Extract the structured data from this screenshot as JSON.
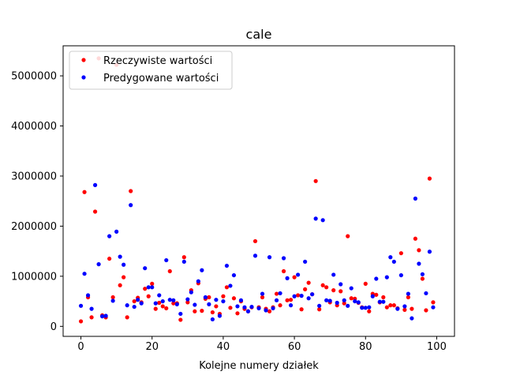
{
  "chart_data": {
    "type": "scatter",
    "title": "cale",
    "xlabel": "Kolejne numery działek",
    "ylabel": "",
    "xlim": [
      -5,
      105
    ],
    "ylim": [
      -200000,
      5600000
    ],
    "x_ticks": [
      0,
      20,
      40,
      60,
      80,
      100
    ],
    "x_tick_labels": [
      "0",
      "20",
      "40",
      "60",
      "80",
      "100"
    ],
    "y_ticks": [
      0,
      1000000,
      2000000,
      3000000,
      4000000,
      5000000
    ],
    "y_tick_labels": [
      "0",
      "1000000",
      "2000000",
      "3000000",
      "4000000",
      "5000000"
    ],
    "grid": false,
    "legend_position": "upper left",
    "series": [
      {
        "name": "Rzeczywiste wartości",
        "color": "#ff0000",
        "x": [
          0,
          1,
          2,
          3,
          4,
          5,
          6,
          7,
          8,
          9,
          10,
          11,
          12,
          13,
          14,
          15,
          16,
          17,
          18,
          19,
          20,
          21,
          22,
          23,
          24,
          25,
          26,
          27,
          28,
          29,
          30,
          31,
          32,
          33,
          34,
          35,
          36,
          37,
          38,
          39,
          40,
          41,
          42,
          43,
          44,
          45,
          46,
          47,
          48,
          49,
          50,
          51,
          52,
          53,
          54,
          55,
          56,
          57,
          58,
          59,
          60,
          61,
          62,
          63,
          64,
          65,
          66,
          67,
          68,
          69,
          70,
          71,
          72,
          73,
          74,
          75,
          76,
          77,
          78,
          79,
          80,
          81,
          82,
          83,
          84,
          85,
          86,
          87,
          88,
          89,
          90,
          91,
          92,
          93,
          94,
          95,
          96,
          97,
          98,
          99
        ],
        "y": [
          100000,
          2680000,
          580000,
          180000,
          2290000,
          5350000,
          220000,
          180000,
          1350000,
          580000,
          5220000,
          820000,
          980000,
          180000,
          2700000,
          500000,
          570000,
          480000,
          750000,
          600000,
          850000,
          350000,
          470000,
          400000,
          360000,
          1100000,
          460000,
          460000,
          130000,
          1380000,
          480000,
          720000,
          300000,
          860000,
          310000,
          550000,
          580000,
          280000,
          400000,
          250000,
          600000,
          780000,
          370000,
          560000,
          260000,
          500000,
          350000,
          300000,
          380000,
          1700000,
          380000,
          580000,
          350000,
          300000,
          380000,
          650000,
          420000,
          1100000,
          520000,
          530000,
          980000,
          620000,
          340000,
          740000,
          870000,
          640000,
          2900000,
          340000,
          820000,
          780000,
          480000,
          720000,
          420000,
          700000,
          460000,
          1800000,
          560000,
          550000,
          470000,
          380000,
          850000,
          300000,
          650000,
          630000,
          480000,
          580000,
          380000,
          420000,
          420000,
          360000,
          1460000,
          330000,
          580000,
          350000,
          1750000,
          1520000,
          950000,
          320000,
          2950000,
          480000
        ]
      },
      {
        "name": "Predygowane wartości",
        "color": "#0000ff",
        "x": [
          0,
          1,
          2,
          3,
          4,
          5,
          6,
          7,
          8,
          9,
          10,
          11,
          12,
          13,
          14,
          15,
          16,
          17,
          18,
          19,
          20,
          21,
          22,
          23,
          24,
          25,
          26,
          27,
          28,
          29,
          30,
          31,
          32,
          33,
          34,
          35,
          36,
          37,
          38,
          39,
          40,
          41,
          42,
          43,
          44,
          45,
          46,
          47,
          48,
          49,
          50,
          51,
          52,
          53,
          54,
          55,
          56,
          57,
          58,
          59,
          60,
          61,
          62,
          63,
          64,
          65,
          66,
          67,
          68,
          69,
          70,
          71,
          72,
          73,
          74,
          75,
          76,
          77,
          78,
          79,
          80,
          81,
          82,
          83,
          84,
          85,
          86,
          87,
          88,
          89,
          90,
          91,
          92,
          93,
          94,
          95,
          96,
          97,
          98,
          99
        ],
        "y": [
          410000,
          1050000,
          620000,
          350000,
          2820000,
          1240000,
          200000,
          210000,
          1800000,
          510000,
          1890000,
          1390000,
          1230000,
          420000,
          2420000,
          390000,
          530000,
          460000,
          1160000,
          780000,
          780000,
          460000,
          620000,
          500000,
          1320000,
          530000,
          520000,
          440000,
          250000,
          1290000,
          540000,
          680000,
          430000,
          900000,
          1120000,
          580000,
          440000,
          140000,
          530000,
          210000,
          500000,
          1210000,
          810000,
          1020000,
          400000,
          520000,
          380000,
          300000,
          390000,
          1410000,
          360000,
          650000,
          320000,
          1380000,
          360000,
          520000,
          660000,
          1360000,
          960000,
          420000,
          600000,
          1030000,
          610000,
          1290000,
          560000,
          640000,
          2150000,
          410000,
          2120000,
          520000,
          510000,
          1030000,
          470000,
          840000,
          520000,
          410000,
          760000,
          500000,
          480000,
          370000,
          370000,
          380000,
          600000,
          950000,
          490000,
          490000,
          980000,
          1380000,
          1290000,
          350000,
          1020000,
          400000,
          650000,
          160000,
          2550000,
          1250000,
          1040000,
          660000,
          1490000,
          380000
        ]
      }
    ]
  }
}
